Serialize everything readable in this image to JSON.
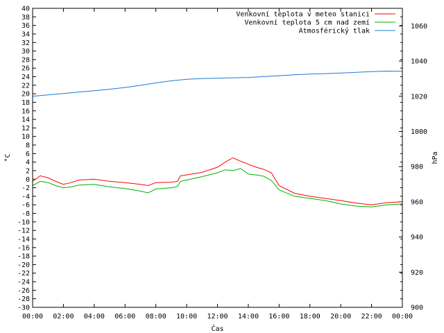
{
  "chart_data": {
    "type": "line",
    "title": "",
    "xlabel": "Čas",
    "ylabel": "°C",
    "y2label": "hPa",
    "x_ticks": [
      "00:00",
      "02:00",
      "04:00",
      "06:00",
      "08:00",
      "10:00",
      "12:00",
      "14:00",
      "16:00",
      "18:00",
      "20:00",
      "22:00",
      "00:00"
    ],
    "xlim_hours": [
      0,
      24
    ],
    "ylim": [
      -30,
      40
    ],
    "y_tick_step": 2,
    "y2lim": [
      900,
      1070
    ],
    "y2_ticks": [
      900,
      920,
      940,
      960,
      980,
      1000,
      1020,
      1040,
      1060
    ],
    "grid": false,
    "legend_position": "top-right",
    "series": [
      {
        "name": "Venkovní teplota v meteo stanici",
        "axis": "left",
        "color": "#ff0000",
        "x": [
          0,
          0.5,
          1,
          1.5,
          2,
          2.5,
          3,
          4,
          5,
          6,
          7,
          7.5,
          8,
          9,
          9.4,
          9.6,
          10,
          11,
          12,
          12.5,
          13,
          13.5,
          14,
          14.5,
          15,
          15.5,
          16,
          17,
          18,
          19,
          20,
          21,
          22,
          23,
          24
        ],
        "values": [
          -0.5,
          0.8,
          0.3,
          -0.5,
          -1.2,
          -0.8,
          -0.2,
          0,
          -0.5,
          -0.8,
          -1.2,
          -1.5,
          -0.8,
          -0.7,
          -0.5,
          0.8,
          1.0,
          1.6,
          2.8,
          4.0,
          5.0,
          4.2,
          3.5,
          2.8,
          2.3,
          1.5,
          -1.5,
          -3.3,
          -4.0,
          -4.5,
          -5.0,
          -5.6,
          -6.0,
          -5.5,
          -5.3
        ]
      },
      {
        "name": "Venkovní teplota 5 cm nad zemí",
        "axis": "left",
        "color": "#00b000",
        "x": [
          0,
          0.5,
          1,
          1.5,
          2,
          2.5,
          3,
          4,
          5,
          6,
          7,
          7.5,
          8,
          9,
          9.4,
          9.6,
          10,
          11,
          12,
          12.5,
          13,
          13.5,
          14,
          14.5,
          15,
          15.5,
          16,
          17,
          18,
          19,
          20,
          21,
          22,
          23,
          24
        ],
        "values": [
          -1.5,
          -0.5,
          -0.8,
          -1.5,
          -2.0,
          -1.8,
          -1.4,
          -1.2,
          -1.8,
          -2.2,
          -2.8,
          -3.2,
          -2.3,
          -2.0,
          -1.7,
          -0.5,
          -0.2,
          0.6,
          1.5,
          2.2,
          2.0,
          2.5,
          1.2,
          1.0,
          0.7,
          -0.3,
          -2.5,
          -4.0,
          -4.5,
          -5.0,
          -5.8,
          -6.3,
          -6.5,
          -6.0,
          -5.8
        ]
      },
      {
        "name": "Atmosférický tlak",
        "axis": "right",
        "color": "#1f78d0",
        "x": [
          0,
          1,
          2,
          3,
          4,
          5,
          6,
          7,
          8,
          9,
          10,
          11,
          12,
          13,
          14,
          15,
          16,
          17,
          18,
          19,
          20,
          21,
          22,
          23,
          24
        ],
        "values": [
          1020.0,
          1020.8,
          1021.6,
          1022.4,
          1023.2,
          1024.0,
          1025.0,
          1026.2,
          1027.6,
          1028.8,
          1029.7,
          1030.1,
          1030.3,
          1030.5,
          1030.7,
          1031.2,
          1031.7,
          1032.2,
          1032.6,
          1032.9,
          1033.2,
          1033.6,
          1034.0,
          1034.3,
          1034.2
        ]
      }
    ]
  }
}
